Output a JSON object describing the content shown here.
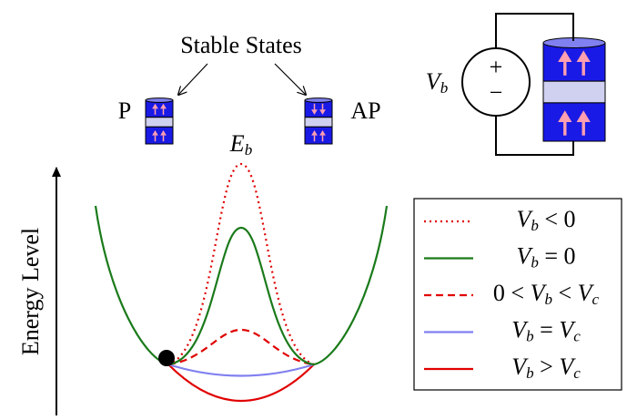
{
  "title": "Stable States",
  "states": [
    {
      "label": "P"
    },
    {
      "label": "AP"
    }
  ],
  "barrier": [
    {
      "t": "E"
    },
    {
      "t": "b",
      "sub": true
    }
  ],
  "source": {
    "voltage": [
      {
        "t": "V"
      },
      {
        "t": "b",
        "sub": true
      }
    ],
    "plus": "+",
    "minus": "−"
  },
  "y_axis_label": "Energy Level",
  "legend": [
    {
      "color": "#e00000",
      "style": "dotted",
      "label": [
        {
          "t": "V"
        },
        {
          "t": "b",
          "sub": true
        },
        {
          "t": " < 0",
          "plain": true
        }
      ]
    },
    {
      "color": "#1a7a1a",
      "style": "solid",
      "label": [
        {
          "t": "V"
        },
        {
          "t": "b",
          "sub": true
        },
        {
          "t": " = 0",
          "plain": true
        }
      ]
    },
    {
      "color": "#e00000",
      "style": "dashed",
      "label": [
        {
          "t": "0 < ",
          "plain": true
        },
        {
          "t": "V"
        },
        {
          "t": "b",
          "sub": true
        },
        {
          "t": " < ",
          "plain": true
        },
        {
          "t": "V"
        },
        {
          "t": "c",
          "sub": true
        }
      ]
    },
    {
      "color": "#8080f0",
      "style": "solid",
      "label": [
        {
          "t": "V"
        },
        {
          "t": "b",
          "sub": true
        },
        {
          "t": " = ",
          "plain": true
        },
        {
          "t": "V"
        },
        {
          "t": "c",
          "sub": true
        }
      ]
    },
    {
      "color": "#e00000",
      "style": "solid",
      "label": [
        {
          "t": "V"
        },
        {
          "t": "b",
          "sub": true
        },
        {
          "t": " > ",
          "plain": true
        },
        {
          "t": "V"
        },
        {
          "t": "c",
          "sub": true
        }
      ]
    }
  ]
}
